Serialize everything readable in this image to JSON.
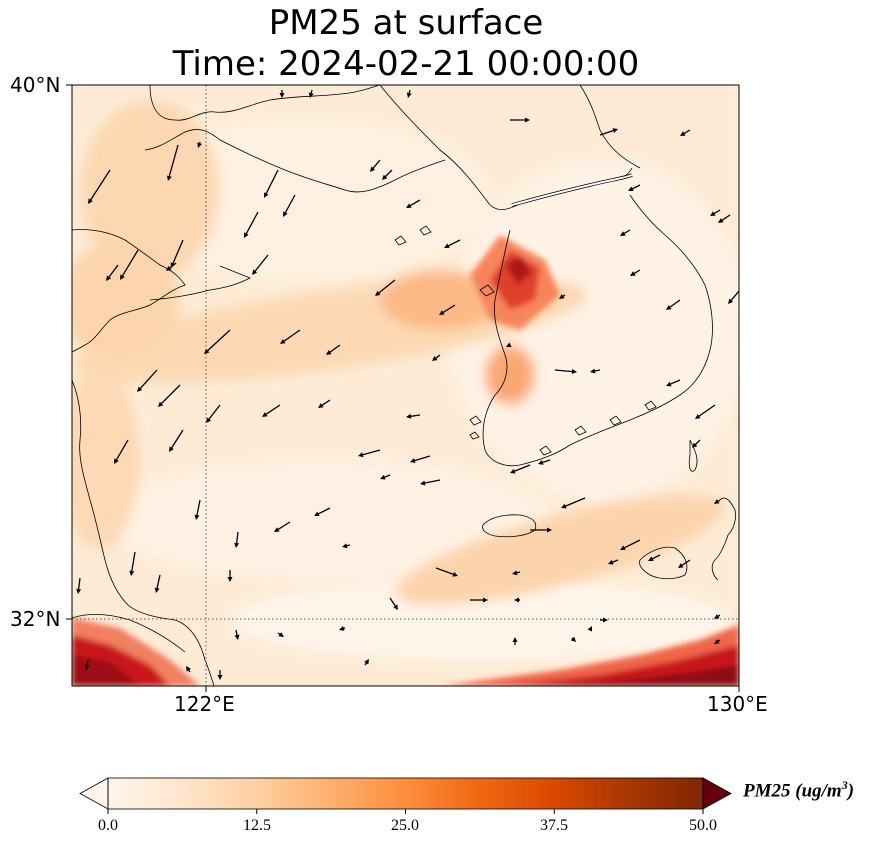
{
  "title": {
    "line1": "PM25 at surface",
    "line2": "Time: 2024-02-21 00:00:00"
  },
  "axes": {
    "lat_ticks": [
      "40°N",
      "32°N"
    ],
    "lon_ticks": [
      "122°E",
      "130°E"
    ]
  },
  "colorbar": {
    "label_text": "PM25 (ug/m",
    "label_sup": "3",
    "label_close": ")",
    "ticks": [
      "0.0",
      "12.5",
      "25.0",
      "37.5",
      "50.0"
    ],
    "extend": "both",
    "colormap": [
      "#fff5eb",
      "#fee6ce",
      "#fdd0a2",
      "#fdae6b",
      "#fd8d3c",
      "#f16913",
      "#d94801",
      "#a63603",
      "#7f2704"
    ]
  },
  "map": {
    "field": "PM25 concentration",
    "grid_lines": "dotted at 122°E and 32°N",
    "hotspots": [
      "Seoul / Incheon area (~40-45 ug/m3)",
      "southern edge near 31°N (50+ ug/m3)",
      "Shanghai area SW corner (45+ ug/m3)"
    ],
    "wind_vectors": "northwesterly to westerly arrows"
  }
}
